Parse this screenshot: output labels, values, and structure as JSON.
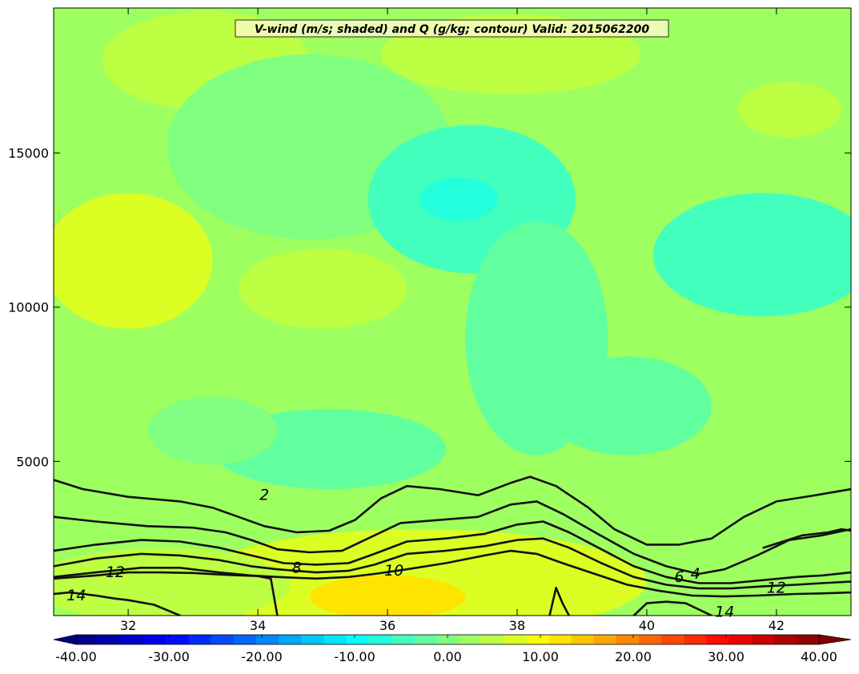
{
  "chart_data": {
    "type": "heatmap",
    "title": "V-wind (m/s; shaded) and Q (g/kg; contour) Valid: 2015062200",
    "xlabel": "",
    "ylabel": "",
    "xlim": [
      30.85,
      43.15
    ],
    "ylim": [
      0,
      19700
    ],
    "x_ticks": [
      32,
      34,
      36,
      38,
      40,
      42
    ],
    "y_ticks": [
      5000,
      10000,
      15000
    ],
    "colorbar": {
      "min": -40,
      "max": 40,
      "ticks": [
        -40,
        -30,
        -20,
        -10,
        0,
        10,
        20,
        30,
        40
      ],
      "tick_labels": [
        "-40.00",
        "-30.00",
        "-20.00",
        "-10.00",
        "0.00",
        "10.00",
        "20.00",
        "30.00",
        "40.00"
      ],
      "levels": 33,
      "extend": "both",
      "colormap": "jet"
    },
    "background_field_value": 2,
    "shaded_regions": [
      {
        "x": 31.3,
        "y": 11800,
        "rx": 0.55,
        "ry": 1300,
        "value": 12
      },
      {
        "x": 32.0,
        "y": 11500,
        "rx": 1.3,
        "ry": 2200,
        "value": 7
      },
      {
        "x": 33.2,
        "y": 18000,
        "rx": 1.6,
        "ry": 1600,
        "value": 6
      },
      {
        "x": 37.9,
        "y": 18200,
        "rx": 2.0,
        "ry": 1300,
        "value": 6
      },
      {
        "x": 42.2,
        "y": 16400,
        "rx": 0.8,
        "ry": 900,
        "value": 6
      },
      {
        "x": 35.0,
        "y": 10600,
        "rx": 1.3,
        "ry": 1300,
        "value": 5
      },
      {
        "x": 34.8,
        "y": 15200,
        "rx": 2.2,
        "ry": 3000,
        "value": -1
      },
      {
        "x": 37.3,
        "y": 13500,
        "rx": 1.6,
        "ry": 2400,
        "value": -4
      },
      {
        "x": 37.1,
        "y": 13500,
        "rx": 0.6,
        "ry": 700,
        "value": -8
      },
      {
        "x": 38.3,
        "y": 9000,
        "rx": 1.1,
        "ry": 3800,
        "value": -3
      },
      {
        "x": 42.2,
        "y": 11700,
        "rx": 1.1,
        "ry": 1100,
        "value": -9
      },
      {
        "x": 41.8,
        "y": 11700,
        "rx": 1.7,
        "ry": 2000,
        "value": -5
      },
      {
        "x": 35.1,
        "y": 5400,
        "rx": 1.8,
        "ry": 1300,
        "value": -3
      },
      {
        "x": 39.7,
        "y": 6800,
        "rx": 1.3,
        "ry": 1600,
        "value": -2
      },
      {
        "x": 33.3,
        "y": 6000,
        "rx": 1.0,
        "ry": 1100,
        "value": 1
      },
      {
        "x": 36.5,
        "y": 1100,
        "rx": 3.5,
        "ry": 1700,
        "value": 7
      },
      {
        "x": 36.0,
        "y": 600,
        "rx": 1.2,
        "ry": 700,
        "value": 11
      },
      {
        "x": 32.5,
        "y": 1000,
        "rx": 2.0,
        "ry": 1200,
        "value": 6
      }
    ],
    "contours": [
      {
        "level": 2,
        "label": "2",
        "label_at": [
          34.1,
          3900
        ],
        "points": [
          [
            30.85,
            4400
          ],
          [
            31.3,
            4100
          ],
          [
            32.0,
            3850
          ],
          [
            32.8,
            3700
          ],
          [
            33.3,
            3500
          ],
          [
            33.7,
            3200
          ],
          [
            34.1,
            2900
          ],
          [
            34.6,
            2700
          ],
          [
            35.1,
            2750
          ],
          [
            35.5,
            3100
          ],
          [
            35.9,
            3800
          ],
          [
            36.3,
            4200
          ],
          [
            36.8,
            4100
          ],
          [
            37.4,
            3900
          ],
          [
            37.9,
            4300
          ],
          [
            38.2,
            4500
          ],
          [
            38.6,
            4200
          ],
          [
            39.1,
            3500
          ],
          [
            39.5,
            2800
          ],
          [
            40.0,
            2300
          ],
          [
            40.5,
            2300
          ],
          [
            41.0,
            2500
          ],
          [
            41.5,
            3200
          ],
          [
            42.0,
            3700
          ],
          [
            42.6,
            3900
          ],
          [
            43.15,
            4100
          ]
        ]
      },
      {
        "level": 4,
        "label": "4",
        "label_at": [
          40.75,
          1350
        ],
        "points": [
          [
            30.85,
            3200
          ],
          [
            31.5,
            3050
          ],
          [
            32.3,
            2900
          ],
          [
            33.0,
            2850
          ],
          [
            33.5,
            2700
          ],
          [
            33.9,
            2450
          ],
          [
            34.3,
            2150
          ],
          [
            34.8,
            2050
          ],
          [
            35.3,
            2100
          ],
          [
            35.7,
            2500
          ],
          [
            36.2,
            3000
          ],
          [
            36.8,
            3100
          ],
          [
            37.4,
            3200
          ],
          [
            37.9,
            3600
          ],
          [
            38.3,
            3700
          ],
          [
            38.7,
            3300
          ],
          [
            39.2,
            2700
          ],
          [
            39.8,
            2000
          ],
          [
            40.3,
            1600
          ],
          [
            40.8,
            1350
          ],
          [
            41.2,
            1500
          ],
          [
            41.7,
            1950
          ],
          [
            42.2,
            2450
          ],
          [
            42.7,
            2600
          ],
          [
            43.15,
            2800
          ]
        ]
      },
      {
        "level": 6,
        "label": "6",
        "label_at": [
          40.5,
          1250
        ],
        "points": [
          [
            30.85,
            2100
          ],
          [
            31.5,
            2300
          ],
          [
            32.2,
            2450
          ],
          [
            32.8,
            2400
          ],
          [
            33.4,
            2200
          ],
          [
            33.9,
            1950
          ],
          [
            34.4,
            1700
          ],
          [
            34.9,
            1650
          ],
          [
            35.4,
            1700
          ],
          [
            35.8,
            2000
          ],
          [
            36.3,
            2400
          ],
          [
            36.9,
            2500
          ],
          [
            37.5,
            2650
          ],
          [
            38.0,
            2950
          ],
          [
            38.4,
            3050
          ],
          [
            38.8,
            2700
          ],
          [
            39.3,
            2150
          ],
          [
            39.8,
            1600
          ],
          [
            40.3,
            1250
          ],
          [
            40.8,
            1050
          ],
          [
            41.3,
            1050
          ],
          [
            41.8,
            1150
          ],
          [
            42.3,
            1250
          ],
          [
            42.7,
            1300
          ],
          [
            43.15,
            1400
          ]
        ]
      },
      {
        "level": 8,
        "label": "8",
        "label_at": [
          34.6,
          1550
        ],
        "points": [
          [
            30.85,
            1600
          ],
          [
            31.5,
            1850
          ],
          [
            32.2,
            2000
          ],
          [
            32.8,
            1950
          ],
          [
            33.4,
            1800
          ],
          [
            33.9,
            1600
          ],
          [
            34.3,
            1500
          ],
          [
            34.9,
            1400
          ],
          [
            35.4,
            1450
          ],
          [
            35.8,
            1650
          ],
          [
            36.3,
            2000
          ],
          [
            36.9,
            2100
          ],
          [
            37.5,
            2250
          ],
          [
            38.0,
            2450
          ],
          [
            38.4,
            2500
          ],
          [
            38.8,
            2200
          ],
          [
            39.3,
            1700
          ],
          [
            39.8,
            1250
          ],
          [
            40.3,
            1000
          ],
          [
            40.8,
            880
          ],
          [
            41.3,
            880
          ],
          [
            41.8,
            950
          ],
          [
            42.3,
            1000
          ],
          [
            42.7,
            1050
          ],
          [
            43.15,
            1100
          ]
        ]
      },
      {
        "level": 10,
        "label": "10",
        "label_at": [
          36.1,
          1450
        ],
        "points": [
          [
            30.85,
            1250
          ],
          [
            31.5,
            1400
          ],
          [
            32.2,
            1550
          ],
          [
            32.8,
            1550
          ],
          [
            33.4,
            1400
          ],
          [
            33.9,
            1300
          ],
          [
            34.3,
            1250
          ],
          [
            34.9,
            1200
          ],
          [
            35.4,
            1250
          ],
          [
            35.8,
            1350
          ],
          [
            36.3,
            1500
          ],
          [
            36.9,
            1700
          ],
          [
            37.5,
            1950
          ],
          [
            37.9,
            2100
          ],
          [
            38.3,
            2000
          ],
          [
            38.7,
            1700
          ],
          [
            39.2,
            1350
          ],
          [
            39.7,
            1000
          ],
          [
            40.2,
            800
          ],
          [
            40.7,
            650
          ],
          [
            41.2,
            620
          ],
          [
            41.7,
            650
          ],
          [
            42.3,
            700
          ],
          [
            42.7,
            720
          ],
          [
            43.15,
            750
          ]
        ]
      },
      {
        "level": 12,
        "label": "12",
        "label_at": [
          31.8,
          1400
        ],
        "points": [
          [
            30.85,
            1200
          ],
          [
            31.5,
            1300
          ],
          [
            32.0,
            1400
          ],
          [
            32.5,
            1400
          ],
          [
            33.0,
            1380
          ],
          [
            33.5,
            1320
          ],
          [
            34.0,
            1280
          ],
          [
            34.2,
            1200
          ],
          [
            34.3,
            0
          ]
        ]
      },
      {
        "level": 12,
        "label": "12",
        "label_at": [
          42.0,
          900
        ],
        "points": [
          [
            41.8,
            2200
          ],
          [
            42.1,
            2400
          ],
          [
            42.4,
            2600
          ],
          [
            42.8,
            2700
          ],
          [
            43.0,
            2800
          ],
          [
            43.15,
            2750
          ]
        ]
      },
      {
        "level": 14,
        "label": "14",
        "label_at": [
          31.2,
          650
        ],
        "points": [
          [
            30.85,
            700
          ],
          [
            31.1,
            750
          ],
          [
            31.5,
            650
          ],
          [
            31.8,
            550
          ],
          [
            32.0,
            500
          ],
          [
            32.4,
            350
          ],
          [
            32.8,
            0
          ]
        ]
      },
      {
        "level": 14,
        "label": "14",
        "label_at": [
          41.2,
          120
        ],
        "points": [
          [
            41.0,
            0
          ],
          [
            40.6,
            400
          ],
          [
            40.3,
            450
          ],
          [
            40.0,
            400
          ],
          [
            39.8,
            0
          ]
        ]
      },
      {
        "level": 14,
        "label": "",
        "points": [
          [
            38.5,
            0
          ],
          [
            38.6,
            900
          ],
          [
            38.7,
            400
          ],
          [
            38.8,
            0
          ]
        ]
      }
    ]
  }
}
